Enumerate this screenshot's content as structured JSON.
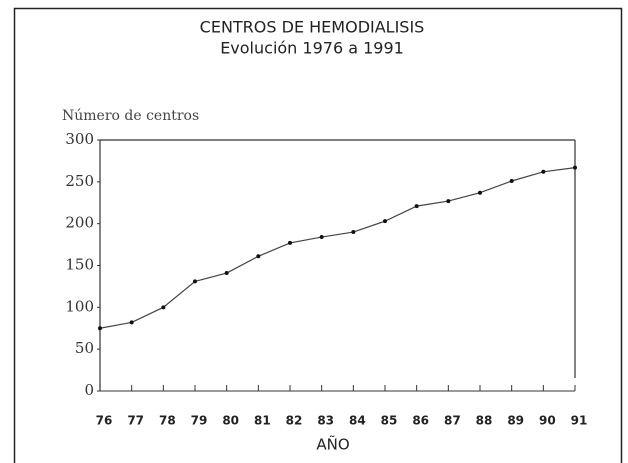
{
  "chart_data": {
    "type": "line",
    "title": "CENTROS DE HEMODIALISIS",
    "subtitle": "Evolución 1976 a 1991",
    "y_label": "Número de centros",
    "x_label": "AÑO",
    "categories": [
      "76",
      "77",
      "78",
      "79",
      "80",
      "81",
      "82",
      "83",
      "84",
      "85",
      "86",
      "87",
      "88",
      "89",
      "90",
      "91"
    ],
    "values": [
      75,
      82,
      100,
      131,
      141,
      161,
      177,
      184,
      190,
      203,
      221,
      227,
      237,
      251,
      262,
      267
    ],
    "color": "#444444",
    "ylim": [
      0,
      300
    ],
    "yticks": [
      0,
      50,
      100,
      150,
      200,
      250,
      300
    ],
    "grid": false
  }
}
